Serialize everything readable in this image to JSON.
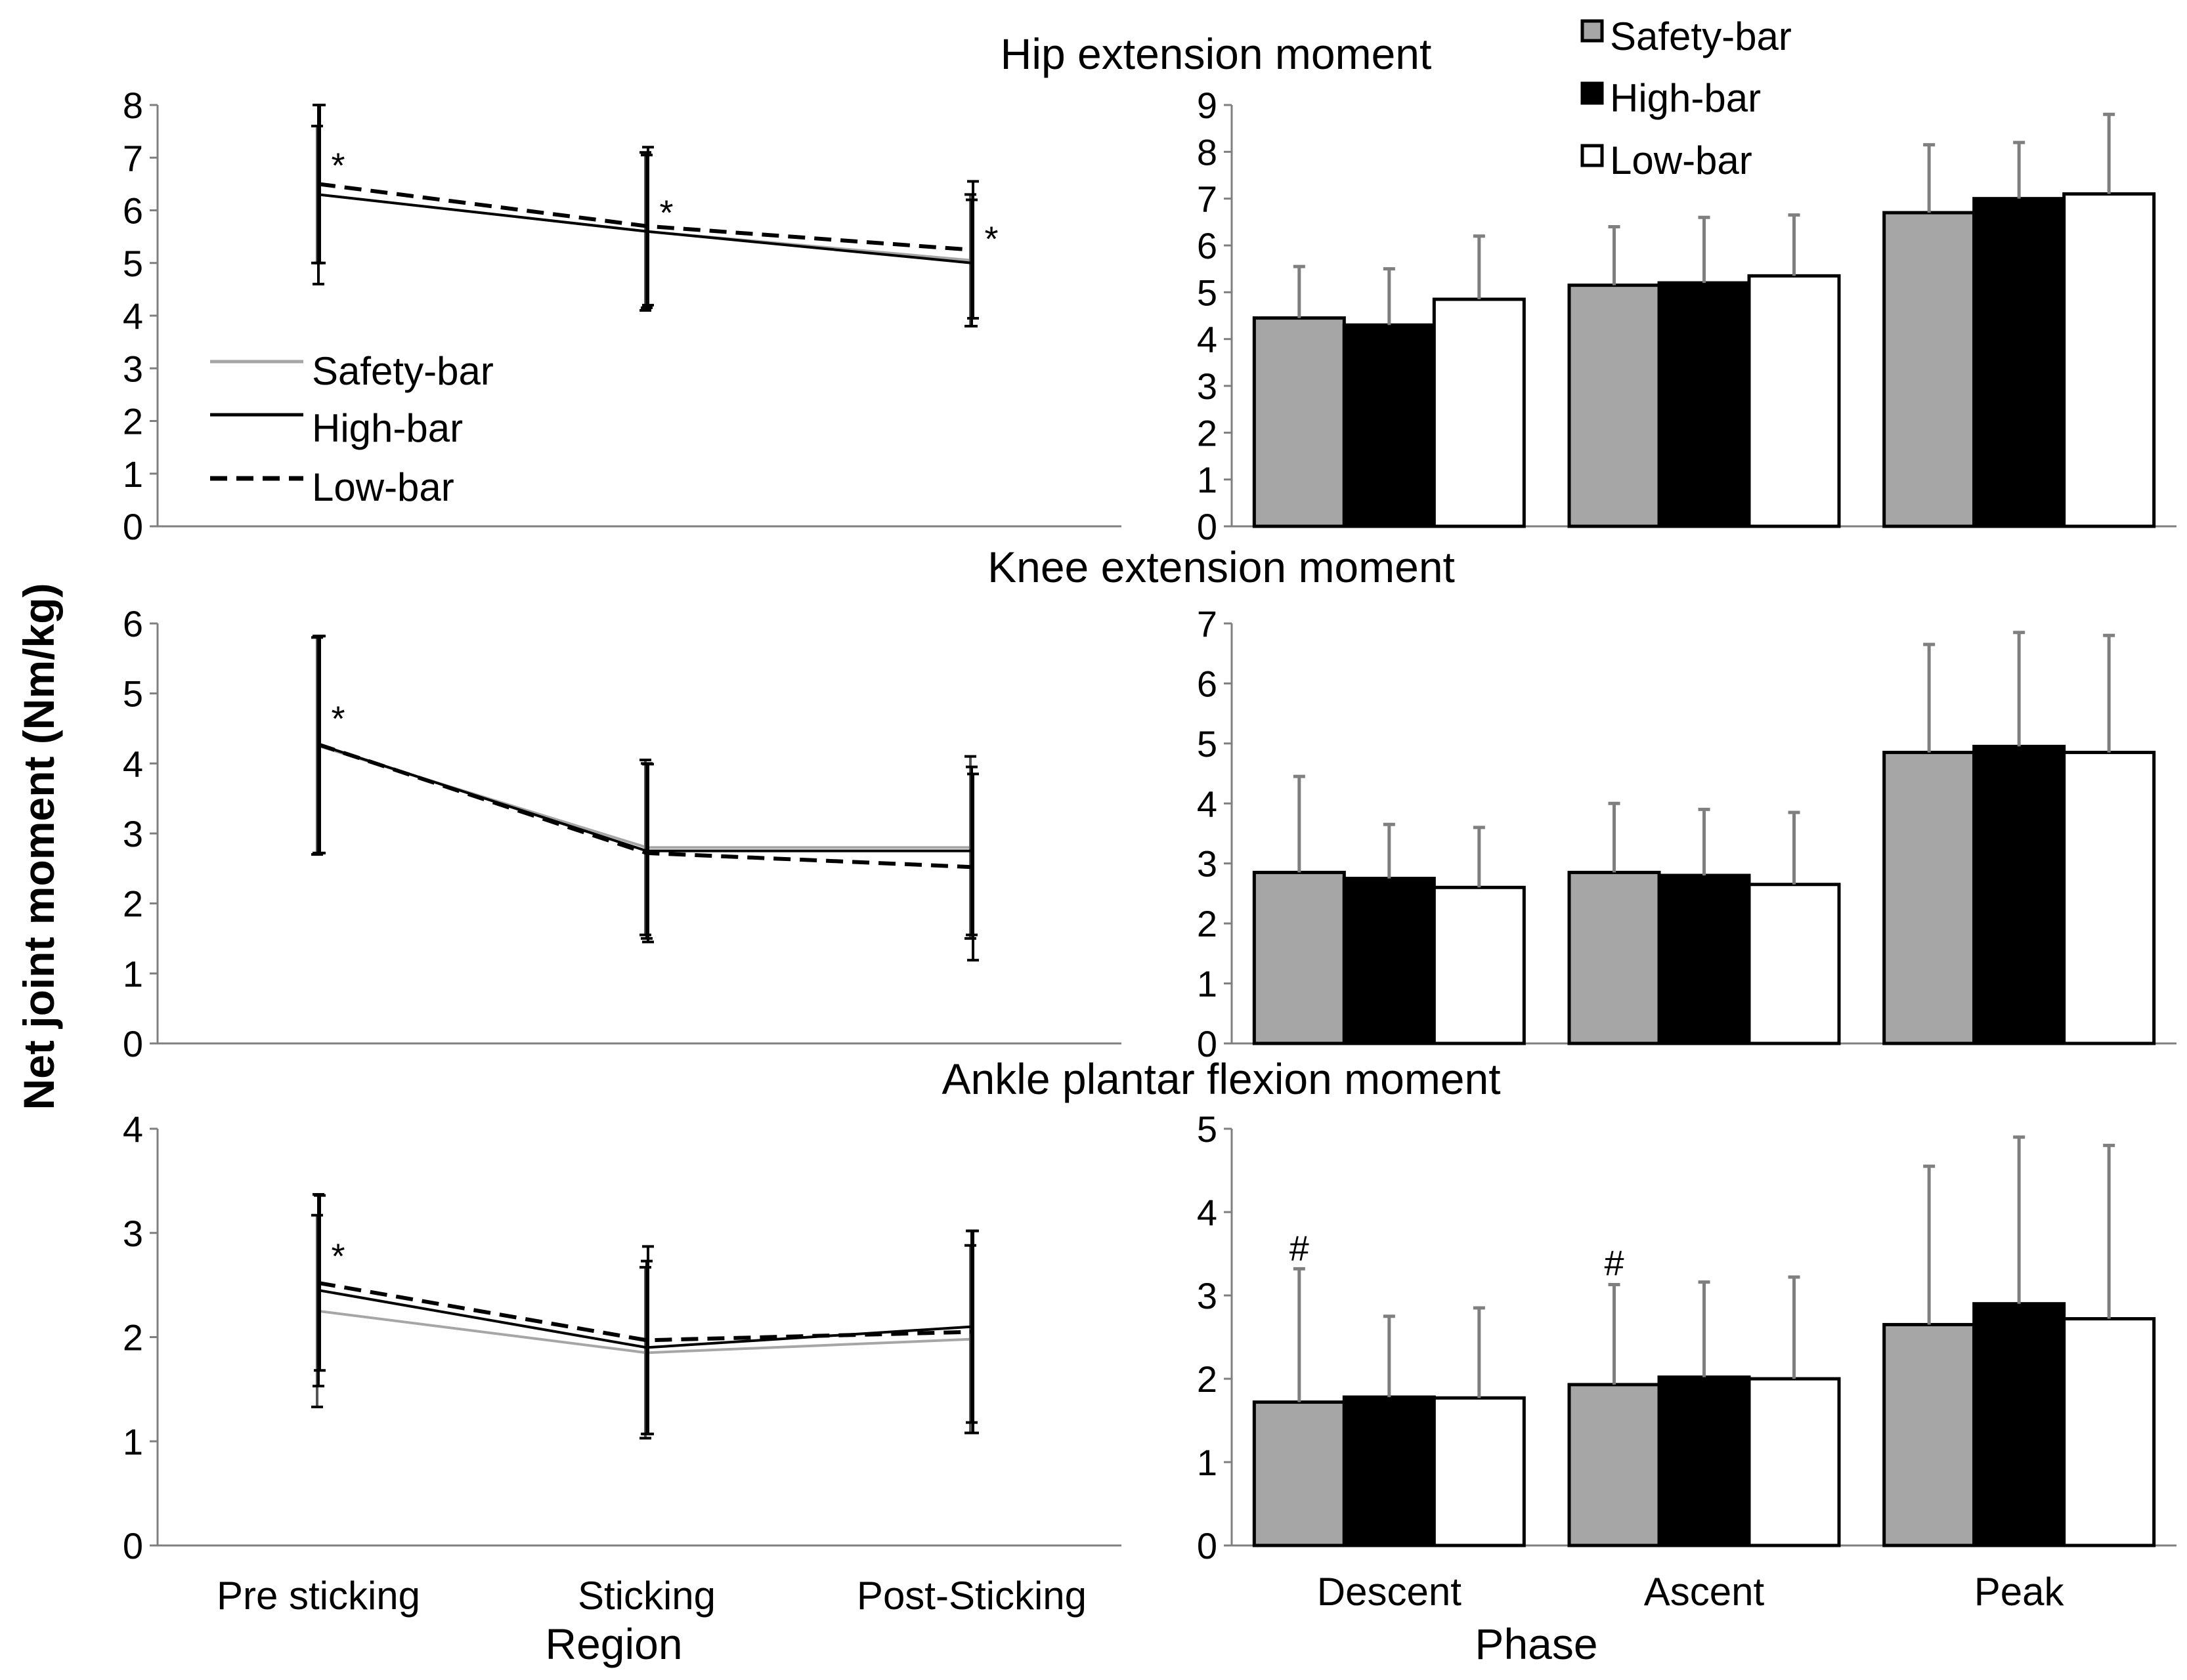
{
  "figure": {
    "ylabel": "Net joint moment (Nm/kg)",
    "left_xlabel": "Region",
    "right_xlabel": "Phase"
  },
  "legends": {
    "line": [
      "Safety-bar",
      "High-bar",
      "Low-bar"
    ],
    "bar": [
      "Safety-bar",
      "High-bar",
      "Low-bar"
    ]
  },
  "colors": {
    "safety": "#a6a6a6",
    "high": "#000000",
    "low": "#ffffff"
  },
  "chart_data": [
    {
      "id": "hip-line",
      "type": "line",
      "title": "Hip extension moment",
      "categories": [
        "Pre sticking",
        "Sticking",
        "Post-Sticking"
      ],
      "ylim": [
        0,
        8
      ],
      "yticks": [
        0,
        1,
        2,
        3,
        4,
        5,
        6,
        7,
        8
      ],
      "series": [
        {
          "name": "Safety-bar",
          "values": [
            6.3,
            5.6,
            5.05
          ],
          "errors": [
            1.3,
            1.5,
            1.25
          ]
        },
        {
          "name": "High-bar",
          "values": [
            6.3,
            5.6,
            5.0
          ],
          "errors": [
            1.7,
            1.45,
            1.2
          ]
        },
        {
          "name": "Low-bar",
          "values": [
            6.5,
            5.7,
            5.25
          ],
          "errors": [
            1.5,
            1.5,
            1.3
          ]
        }
      ],
      "markers": [
        {
          "category": 0,
          "value": 7.0,
          "text": "*"
        },
        {
          "category": 1,
          "value": 6.1,
          "text": "*"
        },
        {
          "category": 2,
          "value": 5.6,
          "text": "*"
        }
      ]
    },
    {
      "id": "hip-bar",
      "type": "bar",
      "categories": [
        "Descent",
        "Ascent",
        "Peak"
      ],
      "ylim": [
        0,
        9
      ],
      "yticks": [
        0,
        1,
        2,
        3,
        4,
        5,
        6,
        7,
        8,
        9
      ],
      "series": [
        {
          "name": "Safety-bar",
          "values": [
            4.45,
            5.15,
            6.7
          ],
          "errors": [
            1.1,
            1.25,
            1.45
          ]
        },
        {
          "name": "High-bar",
          "values": [
            4.3,
            5.2,
            7.0
          ],
          "errors": [
            1.2,
            1.4,
            1.2
          ]
        },
        {
          "name": "Low-bar",
          "values": [
            4.85,
            5.35,
            7.1
          ],
          "errors": [
            1.35,
            1.3,
            1.7
          ]
        }
      ],
      "markers": []
    },
    {
      "id": "knee-line",
      "type": "line",
      "title": "Knee extension moment",
      "categories": [
        "Pre sticking",
        "Sticking",
        "Post-Sticking"
      ],
      "ylim": [
        0,
        6
      ],
      "yticks": [
        0,
        1,
        2,
        3,
        4,
        5,
        6
      ],
      "series": [
        {
          "name": "Safety-bar",
          "values": [
            4.25,
            2.8,
            2.8
          ],
          "errors": [
            1.55,
            1.25,
            1.3
          ]
        },
        {
          "name": "High-bar",
          "values": [
            4.27,
            2.75,
            2.75
          ],
          "errors": [
            1.55,
            1.25,
            1.2
          ]
        },
        {
          "name": "Low-bar",
          "values": [
            4.27,
            2.72,
            2.52
          ],
          "errors": [
            1.55,
            1.27,
            1.33
          ]
        }
      ],
      "markers": [
        {
          "category": 0,
          "value": 4.75,
          "text": "*"
        }
      ]
    },
    {
      "id": "knee-bar",
      "type": "bar",
      "categories": [
        "Descent",
        "Ascent",
        "Peak"
      ],
      "ylim": [
        0,
        7
      ],
      "yticks": [
        0,
        1,
        2,
        3,
        4,
        5,
        6,
        7
      ],
      "series": [
        {
          "name": "Safety-bar",
          "values": [
            2.85,
            2.85,
            4.85
          ],
          "errors": [
            1.6,
            1.15,
            1.8
          ]
        },
        {
          "name": "High-bar",
          "values": [
            2.75,
            2.8,
            4.95
          ],
          "errors": [
            0.9,
            1.1,
            1.9
          ]
        },
        {
          "name": "Low-bar",
          "values": [
            2.6,
            2.65,
            4.85
          ],
          "errors": [
            1.0,
            1.2,
            1.95
          ]
        }
      ],
      "markers": []
    },
    {
      "id": "ankle-line",
      "type": "line",
      "title": "Ankle plantar flexion moment",
      "categories": [
        "Pre sticking",
        "Sticking",
        "Post-Sticking"
      ],
      "ylim": [
        0,
        4
      ],
      "yticks": [
        0,
        1,
        2,
        3,
        4
      ],
      "series": [
        {
          "name": "Safety-bar",
          "values": [
            2.25,
            1.85,
            1.98
          ],
          "errors": [
            0.92,
            0.82,
            0.9
          ]
        },
        {
          "name": "High-bar",
          "values": [
            2.45,
            1.9,
            2.1
          ],
          "errors": [
            0.92,
            0.83,
            0.92
          ]
        },
        {
          "name": "Low-bar",
          "values": [
            2.52,
            1.97,
            2.05
          ],
          "errors": [
            0.84,
            0.9,
            0.97
          ]
        }
      ],
      "markers": [
        {
          "category": 0,
          "value": 2.85,
          "text": "*"
        }
      ]
    },
    {
      "id": "ankle-bar",
      "type": "bar",
      "categories": [
        "Descent",
        "Ascent",
        "Peak"
      ],
      "ylim": [
        0,
        5
      ],
      "yticks": [
        0,
        1,
        2,
        3,
        4,
        5
      ],
      "series": [
        {
          "name": "Safety-bar",
          "values": [
            1.72,
            1.93,
            2.65
          ],
          "errors": [
            1.6,
            1.2,
            1.9
          ]
        },
        {
          "name": "High-bar",
          "values": [
            1.78,
            2.02,
            2.9
          ],
          "errors": [
            0.97,
            1.14,
            2.0
          ]
        },
        {
          "name": "Low-bar",
          "values": [
            1.77,
            2.0,
            2.72
          ],
          "errors": [
            1.08,
            1.22,
            2.08
          ]
        }
      ],
      "markers": [
        {
          "category": 0,
          "value": 3.58,
          "text": "#"
        },
        {
          "category": 1,
          "value": 3.4,
          "text": "#"
        }
      ]
    }
  ]
}
